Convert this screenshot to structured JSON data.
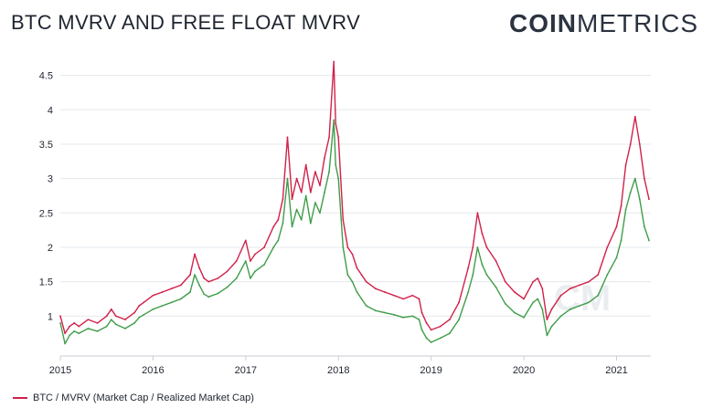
{
  "header": {
    "title": "BTC MVRV AND FREE FLOAT MVRV",
    "logo_bold": "COIN",
    "logo_light": "METRICS"
  },
  "watermark": "CM",
  "legend": {
    "label": "BTC / MVRV (Market Cap / Realized Market Cap)"
  },
  "colors": {
    "mvrv": "#d1214a",
    "free_float": "#3f9d49",
    "grid": "#e5e8ec",
    "text": "#1f2530"
  },
  "chart_data": {
    "type": "line",
    "title": "BTC MVRV AND FREE FLOAT MVRV",
    "ylim": [
      0.5,
      4.8
    ],
    "yticks": [
      1,
      1.5,
      2,
      2.5,
      3,
      3.5,
      4,
      4.5
    ],
    "xlim": [
      2015.0,
      2021.37
    ],
    "xticks": [
      2015,
      2016,
      2017,
      2018,
      2019,
      2020,
      2021
    ],
    "grid": "horizontal",
    "legend_position": "bottom-left",
    "series": [
      {
        "name": "BTC / MVRV (Market Cap / Realized Market Cap)",
        "color": "#d1214a",
        "x": [
          2015.0,
          2015.05,
          2015.1,
          2015.15,
          2015.2,
          2015.3,
          2015.4,
          2015.5,
          2015.55,
          2015.6,
          2015.7,
          2015.8,
          2015.85,
          2015.9,
          2016.0,
          2016.1,
          2016.2,
          2016.3,
          2016.4,
          2016.45,
          2016.5,
          2016.55,
          2016.6,
          2016.7,
          2016.8,
          2016.9,
          2017.0,
          2017.05,
          2017.1,
          2017.2,
          2017.3,
          2017.35,
          2017.4,
          2017.45,
          2017.5,
          2017.55,
          2017.6,
          2017.65,
          2017.7,
          2017.75,
          2017.8,
          2017.85,
          2017.9,
          2017.95,
          2017.97,
          2018.0,
          2018.05,
          2018.1,
          2018.15,
          2018.2,
          2018.25,
          2018.3,
          2018.4,
          2018.5,
          2018.6,
          2018.7,
          2018.8,
          2018.87,
          2018.9,
          2018.95,
          2019.0,
          2019.1,
          2019.2,
          2019.3,
          2019.4,
          2019.45,
          2019.5,
          2019.55,
          2019.6,
          2019.7,
          2019.8,
          2019.9,
          2020.0,
          2020.1,
          2020.15,
          2020.2,
          2020.25,
          2020.3,
          2020.4,
          2020.5,
          2020.6,
          2020.7,
          2020.8,
          2020.9,
          2021.0,
          2021.05,
          2021.1,
          2021.15,
          2021.2,
          2021.25,
          2021.3,
          2021.35
        ],
        "values": [
          1.0,
          0.75,
          0.85,
          0.9,
          0.85,
          0.95,
          0.9,
          1.0,
          1.1,
          1.0,
          0.95,
          1.05,
          1.15,
          1.2,
          1.3,
          1.35,
          1.4,
          1.45,
          1.6,
          1.9,
          1.7,
          1.55,
          1.5,
          1.55,
          1.65,
          1.8,
          2.1,
          1.8,
          1.9,
          2.0,
          2.3,
          2.4,
          2.7,
          3.6,
          2.7,
          3.0,
          2.8,
          3.2,
          2.8,
          3.1,
          2.9,
          3.3,
          3.6,
          4.7,
          3.8,
          3.6,
          2.4,
          2.0,
          1.9,
          1.7,
          1.6,
          1.5,
          1.4,
          1.35,
          1.3,
          1.25,
          1.3,
          1.25,
          1.05,
          0.9,
          0.8,
          0.85,
          0.95,
          1.2,
          1.7,
          2.0,
          2.5,
          2.2,
          2.0,
          1.8,
          1.5,
          1.35,
          1.25,
          1.5,
          1.55,
          1.4,
          0.95,
          1.1,
          1.3,
          1.4,
          1.45,
          1.5,
          1.6,
          2.0,
          2.3,
          2.6,
          3.2,
          3.5,
          3.9,
          3.5,
          3.0,
          2.7
        ]
      },
      {
        "name": "",
        "color": "#3f9d49",
        "x": [
          2015.0,
          2015.05,
          2015.1,
          2015.15,
          2015.2,
          2015.3,
          2015.4,
          2015.5,
          2015.55,
          2015.6,
          2015.7,
          2015.8,
          2015.85,
          2015.9,
          2016.0,
          2016.1,
          2016.2,
          2016.3,
          2016.4,
          2016.45,
          2016.5,
          2016.55,
          2016.6,
          2016.7,
          2016.8,
          2016.9,
          2017.0,
          2017.05,
          2017.1,
          2017.2,
          2017.3,
          2017.35,
          2017.4,
          2017.45,
          2017.5,
          2017.55,
          2017.6,
          2017.65,
          2017.7,
          2017.75,
          2017.8,
          2017.85,
          2017.9,
          2017.95,
          2017.97,
          2018.0,
          2018.05,
          2018.1,
          2018.15,
          2018.2,
          2018.25,
          2018.3,
          2018.4,
          2018.5,
          2018.6,
          2018.7,
          2018.8,
          2018.87,
          2018.9,
          2018.95,
          2019.0,
          2019.1,
          2019.2,
          2019.3,
          2019.4,
          2019.45,
          2019.5,
          2019.55,
          2019.6,
          2019.7,
          2019.8,
          2019.9,
          2020.0,
          2020.1,
          2020.15,
          2020.2,
          2020.25,
          2020.3,
          2020.4,
          2020.5,
          2020.6,
          2020.7,
          2020.8,
          2020.9,
          2021.0,
          2021.05,
          2021.1,
          2021.15,
          2021.2,
          2021.25,
          2021.3,
          2021.35
        ],
        "values": [
          0.9,
          0.6,
          0.72,
          0.78,
          0.75,
          0.82,
          0.78,
          0.85,
          0.95,
          0.88,
          0.82,
          0.9,
          0.98,
          1.02,
          1.1,
          1.15,
          1.2,
          1.25,
          1.35,
          1.6,
          1.45,
          1.32,
          1.28,
          1.33,
          1.42,
          1.55,
          1.8,
          1.55,
          1.65,
          1.75,
          2.0,
          2.1,
          2.35,
          3.0,
          2.3,
          2.55,
          2.4,
          2.75,
          2.35,
          2.65,
          2.5,
          2.8,
          3.1,
          3.85,
          3.2,
          3.0,
          2.0,
          1.6,
          1.5,
          1.35,
          1.25,
          1.15,
          1.08,
          1.05,
          1.02,
          0.98,
          1.0,
          0.95,
          0.8,
          0.68,
          0.62,
          0.68,
          0.75,
          0.95,
          1.35,
          1.6,
          2.0,
          1.75,
          1.6,
          1.42,
          1.18,
          1.05,
          0.98,
          1.2,
          1.25,
          1.1,
          0.72,
          0.85,
          1.0,
          1.1,
          1.15,
          1.2,
          1.3,
          1.6,
          1.85,
          2.1,
          2.55,
          2.8,
          3.0,
          2.7,
          2.3,
          2.1
        ]
      }
    ]
  }
}
